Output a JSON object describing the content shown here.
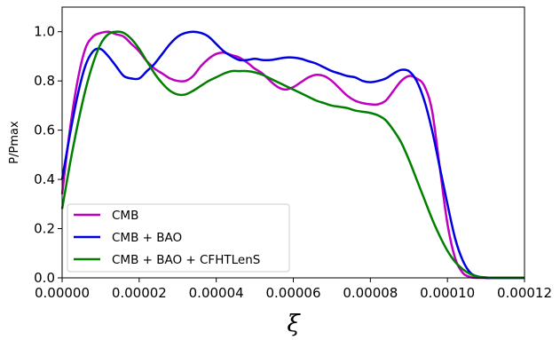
{
  "chart_data": {
    "type": "line",
    "title": "",
    "xlabel": "ξ",
    "ylabel": "P/Pmax",
    "xlim": [
      0,
      0.00012
    ],
    "ylim": [
      0,
      1.1
    ],
    "xticks": [
      "0.00000",
      "0.00002",
      "0.00004",
      "0.00006",
      "0.00008",
      "0.00010",
      "0.00012"
    ],
    "yticks": [
      "0.0",
      "0.2",
      "0.4",
      "0.6",
      "0.8",
      "1.0"
    ],
    "xtick_values": [
      0,
      2e-05,
      4e-05,
      6e-05,
      8e-05,
      0.0001,
      0.00012
    ],
    "ytick_values": [
      0,
      0.2,
      0.4,
      0.6,
      0.8,
      1.0
    ],
    "grid": false,
    "legend_position": "lower-left",
    "series": [
      {
        "name": "CMB",
        "color": "#bf00bf",
        "x": [
          0,
          2e-06,
          4e-06,
          6e-06,
          8e-06,
          1e-05,
          1.2e-05,
          1.4e-05,
          1.6e-05,
          1.8e-05,
          2e-05,
          2.2e-05,
          2.4e-05,
          2.6e-05,
          2.8e-05,
          3e-05,
          3.2e-05,
          3.4e-05,
          3.6e-05,
          3.8e-05,
          4e-05,
          4.2e-05,
          4.4e-05,
          4.6e-05,
          4.8e-05,
          5e-05,
          5.2e-05,
          5.4e-05,
          5.6e-05,
          5.8e-05,
          6e-05,
          6.2e-05,
          6.4e-05,
          6.6e-05,
          6.8e-05,
          7e-05,
          7.2e-05,
          7.4e-05,
          7.6e-05,
          7.8e-05,
          8e-05,
          8.2e-05,
          8.4e-05,
          8.6e-05,
          8.8e-05,
          9e-05,
          9.2e-05,
          9.4e-05,
          9.6e-05,
          9.8e-05,
          0.0001,
          0.000102,
          0.000104,
          0.000106,
          0.000108,
          0.00011,
          0.000112,
          0.000114,
          0.00012
        ],
        "y": [
          0.34,
          0.6,
          0.8,
          0.93,
          0.98,
          0.995,
          1.0,
          0.99,
          0.98,
          0.95,
          0.92,
          0.88,
          0.85,
          0.83,
          0.81,
          0.8,
          0.8,
          0.82,
          0.86,
          0.89,
          0.91,
          0.915,
          0.905,
          0.895,
          0.875,
          0.85,
          0.83,
          0.8,
          0.775,
          0.765,
          0.775,
          0.795,
          0.815,
          0.825,
          0.82,
          0.8,
          0.77,
          0.74,
          0.72,
          0.71,
          0.705,
          0.705,
          0.72,
          0.76,
          0.8,
          0.82,
          0.81,
          0.78,
          0.68,
          0.45,
          0.22,
          0.08,
          0.02,
          0.003,
          0,
          0,
          0,
          0,
          0
        ]
      },
      {
        "name": "CMB + BAO",
        "color": "#0000e0",
        "x": [
          0,
          2e-06,
          4e-06,
          6e-06,
          8e-06,
          1e-05,
          1.2e-05,
          1.4e-05,
          1.6e-05,
          1.8e-05,
          2e-05,
          2.2e-05,
          2.4e-05,
          2.6e-05,
          2.8e-05,
          3e-05,
          3.2e-05,
          3.4e-05,
          3.6e-05,
          3.8e-05,
          4e-05,
          4.2e-05,
          4.4e-05,
          4.6e-05,
          4.8e-05,
          5e-05,
          5.2e-05,
          5.4e-05,
          5.6e-05,
          5.8e-05,
          6e-05,
          6.2e-05,
          6.4e-05,
          6.6e-05,
          6.8e-05,
          7e-05,
          7.2e-05,
          7.4e-05,
          7.6e-05,
          7.8e-05,
          8e-05,
          8.2e-05,
          8.4e-05,
          8.6e-05,
          8.8e-05,
          9e-05,
          9.2e-05,
          9.4e-05,
          9.6e-05,
          9.8e-05,
          0.0001,
          0.000102,
          0.000104,
          0.000106,
          0.000108,
          0.00011,
          0.000112,
          0.000114,
          0.00012
        ],
        "y": [
          0.4,
          0.58,
          0.74,
          0.86,
          0.92,
          0.93,
          0.9,
          0.86,
          0.82,
          0.81,
          0.81,
          0.84,
          0.87,
          0.91,
          0.95,
          0.98,
          0.995,
          1.0,
          0.995,
          0.98,
          0.95,
          0.92,
          0.9,
          0.885,
          0.885,
          0.89,
          0.885,
          0.885,
          0.89,
          0.895,
          0.895,
          0.89,
          0.88,
          0.87,
          0.855,
          0.84,
          0.83,
          0.82,
          0.815,
          0.8,
          0.795,
          0.8,
          0.81,
          0.83,
          0.845,
          0.84,
          0.8,
          0.72,
          0.6,
          0.45,
          0.3,
          0.16,
          0.07,
          0.02,
          0.005,
          0,
          0,
          0,
          0
        ]
      },
      {
        "name": "CMB + BAO + CFHTLenS",
        "color": "#007f00",
        "x": [
          0,
          2e-06,
          4e-06,
          6e-06,
          8e-06,
          1e-05,
          1.2e-05,
          1.4e-05,
          1.6e-05,
          1.8e-05,
          2e-05,
          2.2e-05,
          2.4e-05,
          2.6e-05,
          2.8e-05,
          3e-05,
          3.2e-05,
          3.4e-05,
          3.6e-05,
          3.8e-05,
          4e-05,
          4.2e-05,
          4.4e-05,
          4.6e-05,
          4.8e-05,
          5e-05,
          5.2e-05,
          5.4e-05,
          5.6e-05,
          5.8e-05,
          6e-05,
          6.2e-05,
          6.4e-05,
          6.6e-05,
          6.8e-05,
          7e-05,
          7.2e-05,
          7.4e-05,
          7.6e-05,
          7.8e-05,
          8e-05,
          8.2e-05,
          8.4e-05,
          8.6e-05,
          8.8e-05,
          9e-05,
          9.2e-05,
          9.4e-05,
          9.6e-05,
          9.8e-05,
          0.0001,
          0.000102,
          0.000104,
          0.000106,
          0.000108,
          0.00011,
          0.000112,
          0.000114,
          0.00012
        ],
        "y": [
          0.28,
          0.46,
          0.62,
          0.76,
          0.87,
          0.95,
          0.99,
          1.0,
          0.995,
          0.97,
          0.93,
          0.88,
          0.83,
          0.79,
          0.76,
          0.745,
          0.745,
          0.76,
          0.78,
          0.8,
          0.815,
          0.83,
          0.84,
          0.84,
          0.84,
          0.835,
          0.825,
          0.81,
          0.795,
          0.78,
          0.765,
          0.75,
          0.735,
          0.72,
          0.71,
          0.7,
          0.695,
          0.69,
          0.68,
          0.675,
          0.67,
          0.66,
          0.64,
          0.6,
          0.55,
          0.48,
          0.4,
          0.32,
          0.24,
          0.17,
          0.11,
          0.065,
          0.035,
          0.015,
          0.005,
          0.002,
          0,
          0,
          0
        ]
      }
    ]
  }
}
